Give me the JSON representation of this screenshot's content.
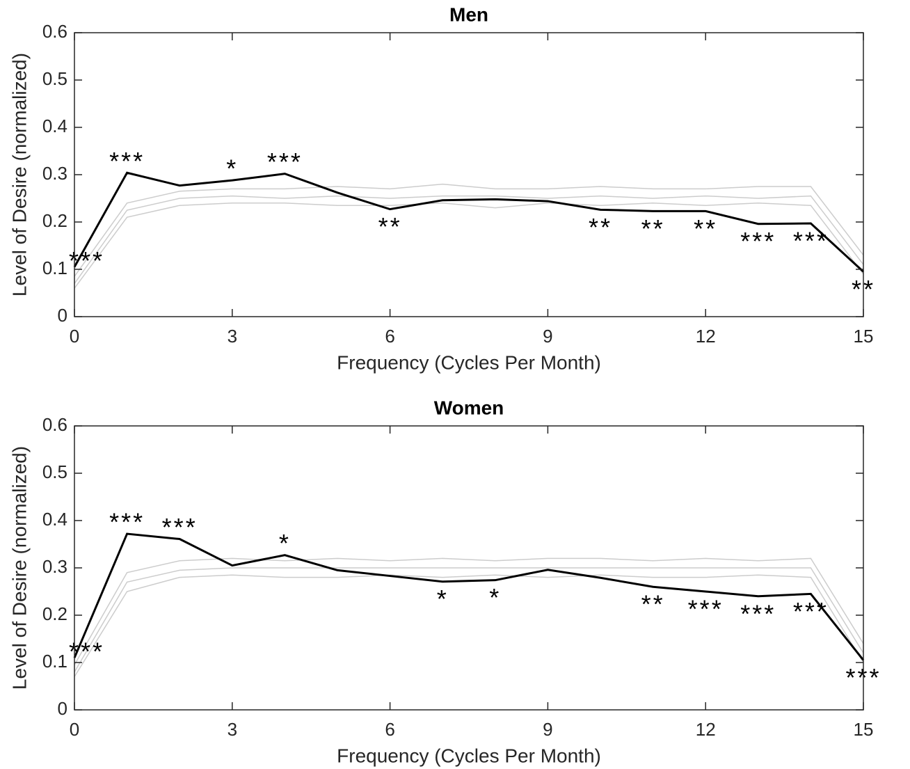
{
  "chart_data": [
    {
      "type": "line",
      "title": "Men",
      "x_label": "Frequency (Cycles Per Month)",
      "y_label": "Level of Desire (normalized)",
      "x": [
        0,
        1,
        2,
        3,
        4,
        5,
        6,
        7,
        8,
        9,
        10,
        11,
        12,
        13,
        14,
        15
      ],
      "xlim": [
        0,
        15
      ],
      "xticks": [
        0,
        3,
        6,
        9,
        12,
        15
      ],
      "ylim": [
        0,
        0.6
      ],
      "yticks": [
        0,
        0.1,
        0.2,
        0.3,
        0.4,
        0.5,
        0.6
      ],
      "series": [
        {
          "color": "#cccccc",
          "values": [
            0.06,
            0.21,
            0.235,
            0.24,
            0.24,
            0.235,
            0.235,
            0.24,
            0.23,
            0.24,
            0.235,
            0.24,
            0.235,
            0.24,
            0.235,
            0.09
          ]
        },
        {
          "color": "#cccccc",
          "values": [
            0.07,
            0.225,
            0.25,
            0.255,
            0.25,
            0.255,
            0.25,
            0.255,
            0.255,
            0.25,
            0.255,
            0.25,
            0.255,
            0.25,
            0.255,
            0.11
          ]
        },
        {
          "color": "#cccccc",
          "values": [
            0.085,
            0.24,
            0.265,
            0.27,
            0.27,
            0.275,
            0.27,
            0.28,
            0.27,
            0.27,
            0.275,
            0.27,
            0.27,
            0.275,
            0.275,
            0.13
          ]
        },
        {
          "color": "#000000",
          "values": [
            0.105,
            0.304,
            0.277,
            0.288,
            0.302,
            0.262,
            0.227,
            0.246,
            0.248,
            0.244,
            0.226,
            0.223,
            0.223,
            0.196,
            0.197,
            0.095
          ]
        }
      ],
      "annotations": [
        "***",
        "***",
        null,
        "*",
        "***",
        null,
        "**",
        null,
        null,
        null,
        "**",
        "**",
        "**",
        "***",
        "***",
        "**"
      ]
    },
    {
      "type": "line",
      "title": "Women",
      "x_label": "Frequency (Cycles Per Month)",
      "y_label": "Level of Desire (normalized)",
      "x": [
        0,
        1,
        2,
        3,
        4,
        5,
        6,
        7,
        8,
        9,
        10,
        11,
        12,
        13,
        14,
        15
      ],
      "xlim": [
        0,
        15
      ],
      "xticks": [
        0,
        3,
        6,
        9,
        12,
        15
      ],
      "ylim": [
        0,
        0.6
      ],
      "yticks": [
        0,
        0.1,
        0.2,
        0.3,
        0.4,
        0.5,
        0.6
      ],
      "series": [
        {
          "color": "#cccccc",
          "values": [
            0.07,
            0.25,
            0.28,
            0.285,
            0.28,
            0.28,
            0.285,
            0.28,
            0.285,
            0.28,
            0.285,
            0.28,
            0.28,
            0.285,
            0.28,
            0.1
          ]
        },
        {
          "color": "#cccccc",
          "values": [
            0.08,
            0.27,
            0.295,
            0.3,
            0.3,
            0.3,
            0.3,
            0.3,
            0.3,
            0.3,
            0.3,
            0.3,
            0.3,
            0.3,
            0.3,
            0.12
          ]
        },
        {
          "color": "#cccccc",
          "values": [
            0.095,
            0.29,
            0.315,
            0.32,
            0.315,
            0.32,
            0.315,
            0.32,
            0.315,
            0.32,
            0.32,
            0.315,
            0.32,
            0.315,
            0.32,
            0.14
          ]
        },
        {
          "color": "#000000",
          "values": [
            0.11,
            0.372,
            0.361,
            0.305,
            0.327,
            0.295,
            0.283,
            0.271,
            0.274,
            0.296,
            0.279,
            0.26,
            0.25,
            0.24,
            0.245,
            0.105
          ]
        }
      ],
      "annotations": [
        "***",
        "***",
        "***",
        null,
        "*",
        null,
        null,
        "*",
        "*",
        null,
        null,
        "**",
        "***",
        "***",
        "***",
        "***"
      ]
    }
  ]
}
